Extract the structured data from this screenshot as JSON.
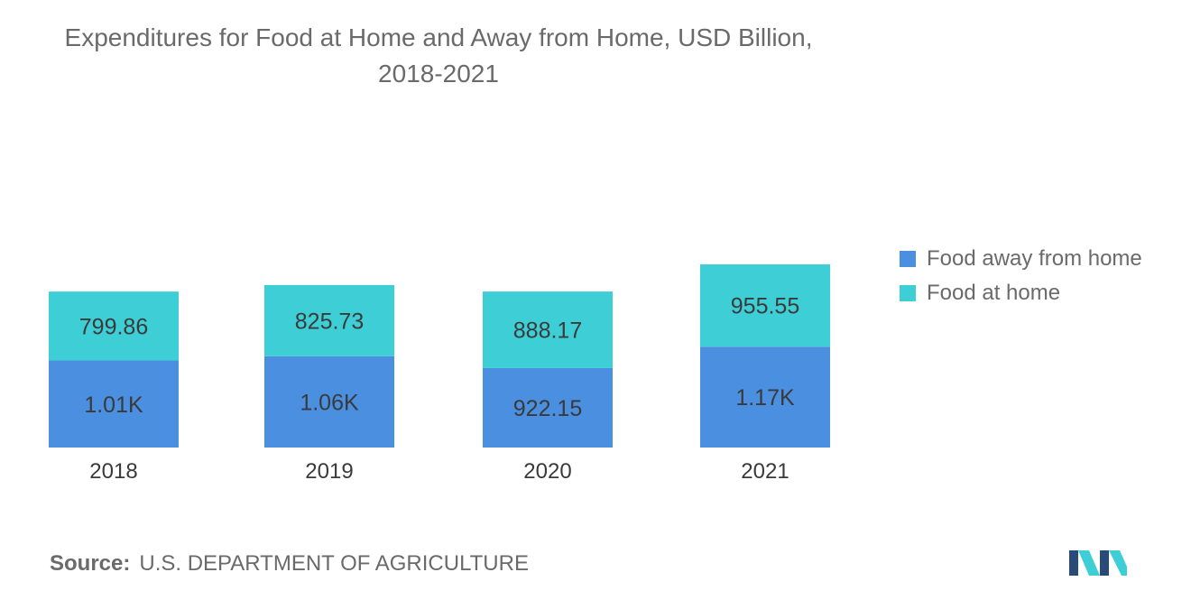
{
  "title_line1": "Expenditures for Food at Home and Away from Home, USD Billion,",
  "title_line2": "2018-2021",
  "source": {
    "label": "Source:",
    "text": "U.S. DEPARTMENT OF AGRICULTURE"
  },
  "colors": {
    "away": "#4a8fe0",
    "home": "#3ecfd6",
    "logo_dark": "#2a4a7a",
    "logo_light": "#3ecfd6"
  },
  "chart_data": {
    "type": "bar",
    "stacked": true,
    "categories": [
      "2018",
      "2019",
      "2020",
      "2021"
    ],
    "series": [
      {
        "name": "Food away from home",
        "values": [
          1010,
          1060,
          922.15,
          1170
        ],
        "labels": [
          "1.01K",
          "1.06K",
          "922.15",
          "1.17K"
        ],
        "color": "#4a8fe0"
      },
      {
        "name": "Food at home",
        "values": [
          799.86,
          825.73,
          888.17,
          955.55
        ],
        "labels": [
          "799.86",
          "825.73",
          "888.17",
          "955.55"
        ],
        "color": "#3ecfd6"
      }
    ],
    "legend_position": "right",
    "grid": false
  }
}
